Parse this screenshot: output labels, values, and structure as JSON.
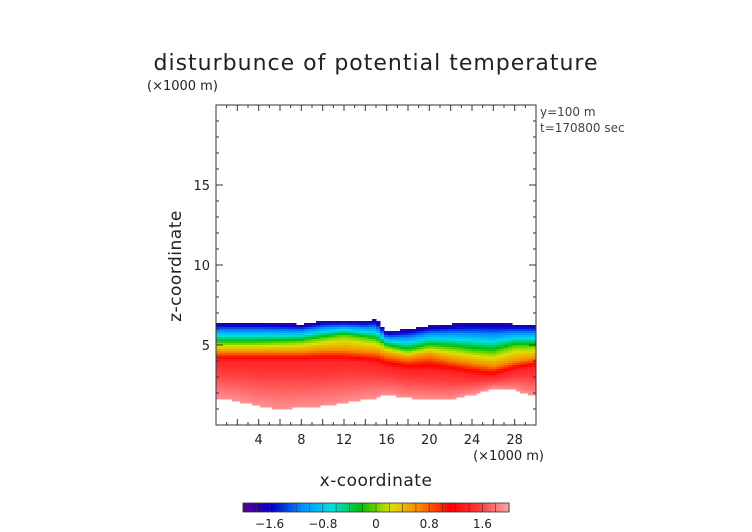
{
  "chart_data": {
    "type": "heatmap",
    "title": "disturbunce of potential temperature",
    "xlabel": "x-coordinate",
    "ylabel": "z-coordinate",
    "x_unit": "(×1000 m)",
    "y_unit": "(×1000 m)",
    "annotations": [
      "y=100 m",
      "t=170800 sec"
    ],
    "xlim": [
      0,
      30
    ],
    "ylim": [
      0,
      20
    ],
    "x_ticks": [
      4,
      8,
      12,
      16,
      20,
      24,
      28
    ],
    "y_ticks": [
      5,
      10,
      15
    ],
    "colorbar": {
      "range": [
        -2,
        2
      ],
      "ticks": [
        -1.6,
        -0.8,
        0,
        0.8,
        1.6
      ],
      "tick_labels": [
        "−1.6",
        "−0.8",
        "0",
        "0.8",
        "1.6"
      ],
      "colors": [
        "#5a0090",
        "#0000cc",
        "#0090ff",
        "#00e0e0",
        "#00c000",
        "#e0e000",
        "#ff8000",
        "#ff0000",
        "#ff3a3a",
        "#ffa8a8"
      ]
    },
    "field": {
      "x": [
        0,
        2,
        4,
        6,
        8,
        10,
        12,
        14,
        15,
        16,
        18,
        20,
        22,
        24,
        26,
        28,
        30
      ],
      "top": [
        6.4,
        6.4,
        6.4,
        6.35,
        6.3,
        6.5,
        6.5,
        6.5,
        6.6,
        5.8,
        6.0,
        6.2,
        6.3,
        6.4,
        6.4,
        6.3,
        6.3
      ],
      "bottom": [
        1.7,
        1.5,
        1.2,
        1.0,
        1.1,
        1.2,
        1.4,
        1.6,
        1.7,
        1.9,
        1.7,
        1.6,
        1.6,
        1.9,
        2.3,
        2.2,
        1.8
      ],
      "z_cold_top": [
        -1.8,
        -1.8,
        -1.8,
        -1.8,
        -1.8,
        -1.8,
        -1.8,
        -1.8,
        -1.8,
        -1.8,
        -1.8,
        -1.8,
        -1.8,
        -1.8,
        -1.8,
        -1.8,
        -1.8
      ],
      "z_green": [
        5.1,
        5.1,
        5.1,
        5.15,
        5.2,
        5.4,
        5.6,
        5.4,
        5.3,
        4.9,
        4.6,
        4.9,
        4.8,
        4.6,
        4.5,
        4.9,
        4.9
      ],
      "z_green_value": 0.0,
      "z_yellow": [
        4.6,
        4.6,
        4.6,
        4.6,
        4.6,
        4.7,
        4.7,
        4.6,
        4.6,
        4.4,
        4.2,
        4.4,
        4.1,
        3.9,
        3.7,
        4.0,
        4.2
      ],
      "z_yellow_value": 0.6,
      "z_red": [
        4.0,
        4.0,
        4.0,
        4.0,
        4.0,
        4.0,
        4.0,
        3.9,
        3.8,
        3.6,
        3.4,
        3.4,
        3.3,
        3.1,
        3.0,
        3.4,
        3.6
      ],
      "z_red_value": 1.4,
      "bottom_value": 1.9
    }
  }
}
